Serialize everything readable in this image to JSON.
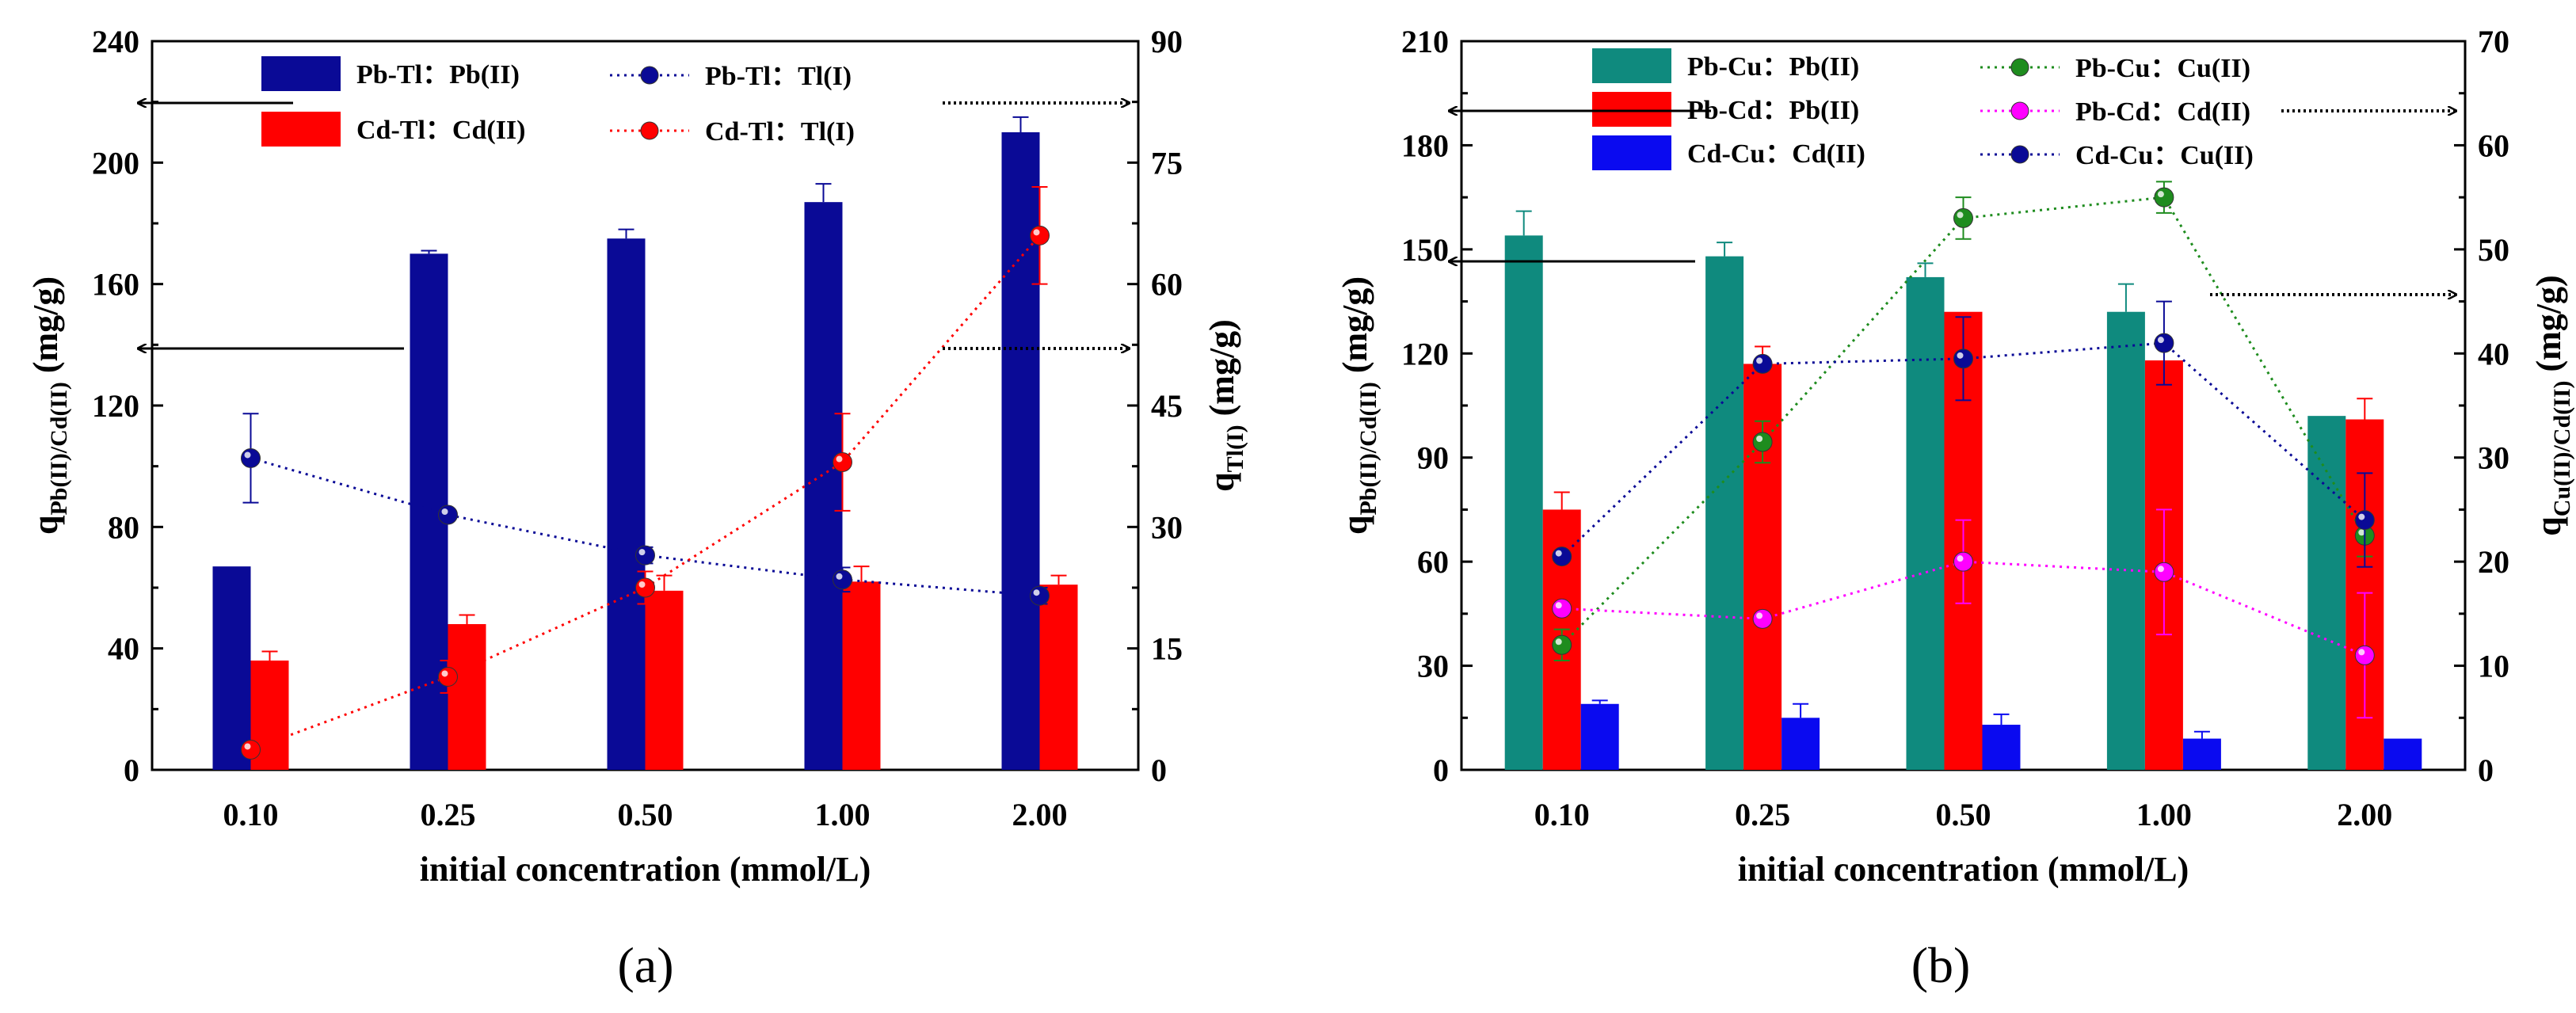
{
  "chart_data": [
    {
      "type": "bar",
      "panel_label": "(a)",
      "panel_letter": "a",
      "xlabel": "initial concentration (mmol/L)",
      "ylabel_left": {
        "base": "q",
        "sub": "Pb(II)/Cd(II)",
        "unit": "(mg/g)"
      },
      "ylabel_right": {
        "base": "q",
        "sub": "Tl(I)",
        "unit": "(mg/g)"
      },
      "categories": [
        "0.10",
        "0.25",
        "0.50",
        "1.00",
        "2.00"
      ],
      "ylim_left": [
        0,
        240
      ],
      "yticks_left": [
        "0",
        "40",
        "80",
        "120",
        "160",
        "200",
        "240"
      ],
      "ylim_right": [
        0,
        90
      ],
      "yticks_right": [
        "0",
        "15",
        "30",
        "45",
        "60",
        "75",
        "90"
      ],
      "bar_series": [
        {
          "name": "Pb-Tl：Pb(II)",
          "color": "#0a0a96",
          "values": [
            67,
            170,
            175,
            187,
            210
          ],
          "errors": [
            0,
            1,
            3,
            6,
            5
          ]
        },
        {
          "name": "Cd-Tl：Cd(II)",
          "color": "#ff0000",
          "values": [
            36,
            48,
            59,
            62,
            61
          ],
          "errors": [
            3,
            3,
            5,
            5,
            3
          ]
        }
      ],
      "line_series": [
        {
          "name": "Pb-Tl：Tl(I)",
          "color": "#0a0a96",
          "axis": "right",
          "values": [
            38.5,
            31.5,
            26.5,
            23.5,
            21.5
          ],
          "errors": [
            5.5,
            0.5,
            1,
            1.5,
            1
          ]
        },
        {
          "name": "Cd-Tl：Tl(I)",
          "color": "#ff0000",
          "axis": "right",
          "values": [
            2.5,
            11.5,
            22.5,
            38,
            66
          ],
          "errors": [
            0.5,
            2,
            2,
            6,
            6
          ]
        }
      ],
      "legend": [
        {
          "name": "Pb-Tl：Pb(II)",
          "kind": "bar",
          "color": "#0a0a96"
        },
        {
          "name": "Cd-Tl：Cd(II)",
          "kind": "bar",
          "color": "#ff0000"
        },
        {
          "name": "Pb-Tl：Tl(I)",
          "kind": "line",
          "color": "#0a0a96"
        },
        {
          "name": "Cd-Tl：Tl(I)",
          "kind": "line",
          "color": "#ff0000"
        }
      ]
    },
    {
      "type": "bar",
      "panel_label": "(b)",
      "panel_letter": "b",
      "xlabel": "initial concentration (mmol/L)",
      "ylabel_left": {
        "base": "q",
        "sub": "Pb(II)/Cd(II)",
        "unit": "(mg/g)"
      },
      "ylabel_right": {
        "base": "q",
        "sub": "Cu(II)/Cd(II)",
        "unit": "(mg/g)"
      },
      "categories": [
        "0.10",
        "0.25",
        "0.50",
        "1.00",
        "2.00"
      ],
      "ylim_left": [
        0,
        210
      ],
      "yticks_left": [
        "0",
        "30",
        "60",
        "90",
        "120",
        "150",
        "180",
        "210"
      ],
      "ylim_right": [
        0,
        70
      ],
      "yticks_right": [
        "0",
        "10",
        "20",
        "30",
        "40",
        "50",
        "60",
        "70"
      ],
      "bar_series": [
        {
          "name": "Pb-Cu：Pb(II)",
          "color": "#0f8a7e",
          "values": [
            154,
            148,
            142,
            132,
            102
          ],
          "errors": [
            7,
            4,
            4,
            8,
            0
          ]
        },
        {
          "name": "Pb-Cd：Pb(II)",
          "color": "#ff0000",
          "values": [
            75,
            117,
            132,
            118,
            101
          ],
          "errors": [
            5,
            5,
            0,
            0,
            6
          ]
        },
        {
          "name": "Cd-Cu：Cd(II)",
          "color": "#0a0af0",
          "values": [
            19,
            15,
            13,
            9,
            9
          ],
          "errors": [
            1,
            4,
            3,
            2,
            0
          ]
        }
      ],
      "line_series": [
        {
          "name": "Pb-Cu：Cu(II)",
          "color": "#1e8c1e",
          "axis": "right",
          "values": [
            12,
            31.5,
            53,
            55,
            22.5
          ],
          "errors": [
            1.5,
            2,
            2,
            1.5,
            2
          ]
        },
        {
          "name": "Pb-Cd：Cd(II)",
          "color": "#ff00ff",
          "axis": "right",
          "values": [
            15.5,
            14.5,
            20,
            19,
            11
          ],
          "errors": [
            0.5,
            0.5,
            4,
            6,
            6
          ]
        },
        {
          "name": "Cd-Cu：Cu(II)",
          "color": "#0a0a96",
          "axis": "right",
          "values": [
            20.5,
            39,
            39.5,
            41,
            24
          ],
          "errors": [
            0,
            0.5,
            4,
            4,
            4.5
          ]
        }
      ],
      "legend": [
        {
          "name": "Pb-Cu：Pb(II)",
          "kind": "bar",
          "color": "#0f8a7e"
        },
        {
          "name": "Pb-Cd：Pb(II)",
          "kind": "bar",
          "color": "#ff0000"
        },
        {
          "name": "Cd-Cu：Cd(II)",
          "kind": "bar",
          "color": "#0a0af0"
        },
        {
          "name": "Pb-Cu：Cu(II)",
          "kind": "line",
          "color": "#1e8c1e"
        },
        {
          "name": "Pb-Cd：Cd(II)",
          "kind": "line",
          "color": "#ff00ff"
        },
        {
          "name": "Cd-Cu：Cu(II)",
          "kind": "line",
          "color": "#0a0a96"
        }
      ]
    }
  ]
}
